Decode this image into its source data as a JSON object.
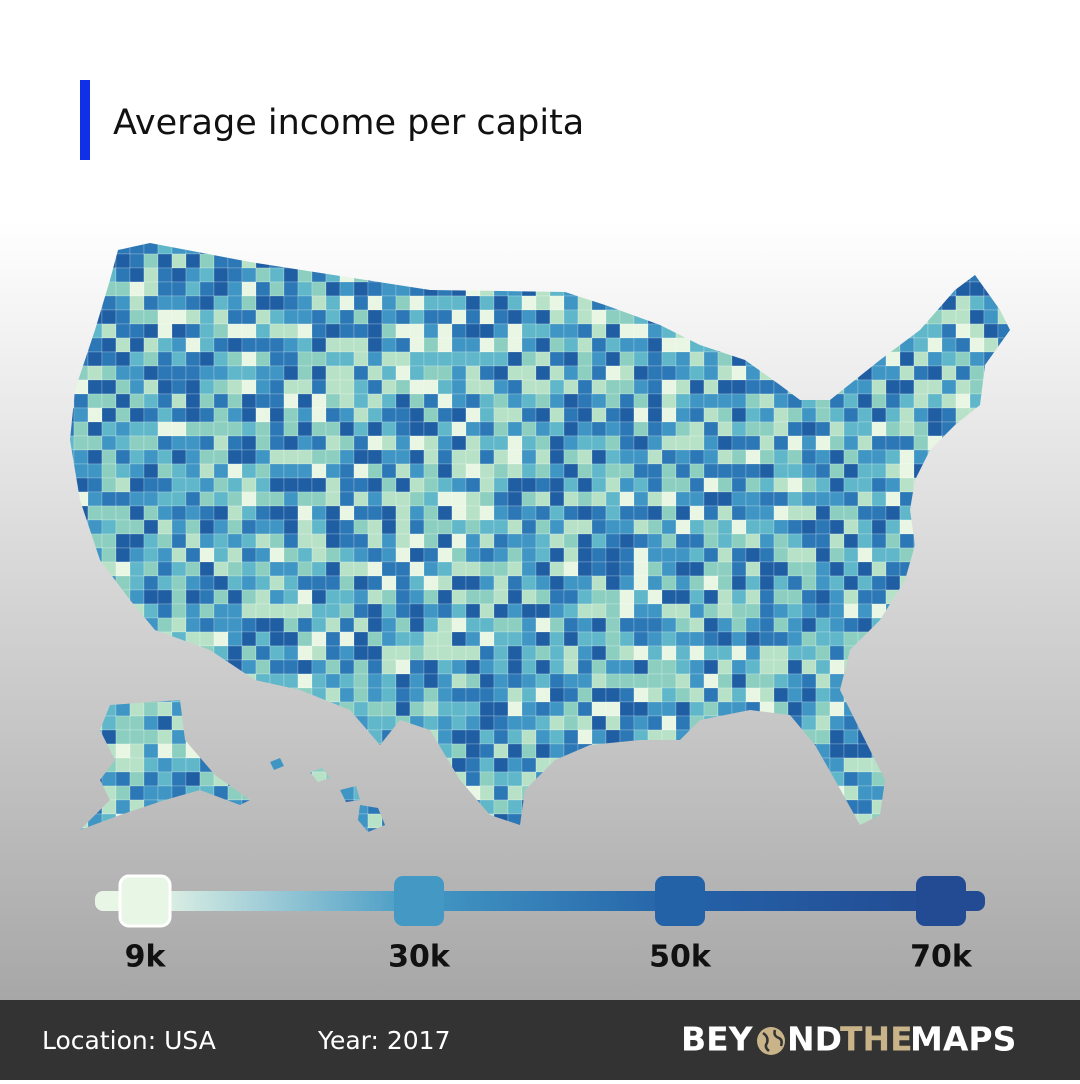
{
  "title": "Average income per capita",
  "legend": {
    "stops": [
      {
        "value": 9000,
        "label": "9k",
        "color": "#e8f6e6"
      },
      {
        "value": 30000,
        "label": "30k",
        "color": "#4398c4"
      },
      {
        "value": 50000,
        "label": "50k",
        "color": "#2462a8"
      },
      {
        "value": 70000,
        "label": "70k",
        "color": "#234b93"
      }
    ]
  },
  "footer": {
    "location": "Location: USA",
    "year": "Year: 2017",
    "brand": [
      "BEY",
      "ND",
      "THE",
      "MAPS"
    ]
  }
}
